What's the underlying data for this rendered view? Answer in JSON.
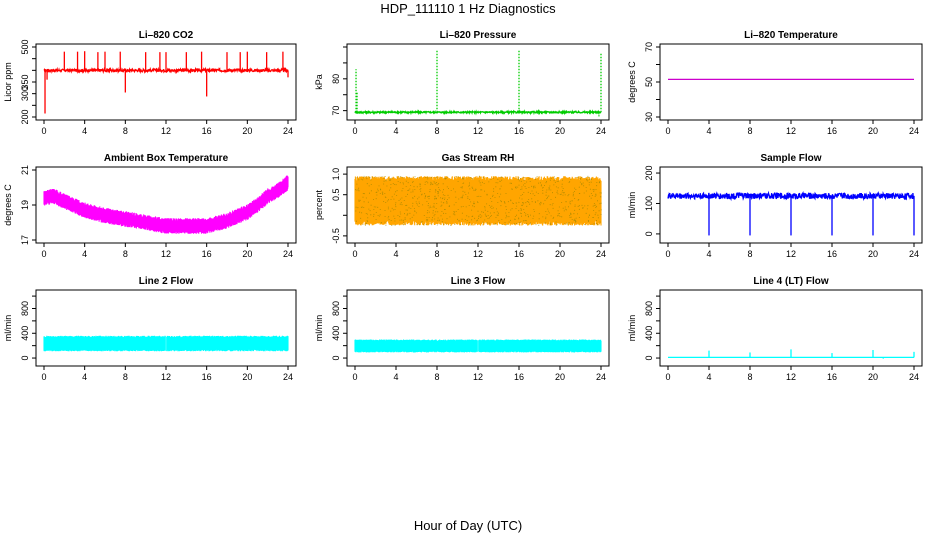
{
  "figure": {
    "title": "HDP_111110  1 Hz Diagnostics",
    "xlabel": "Hour of Day (UTC)"
  },
  "chart_data": [
    {
      "type": "line",
      "title": "Li–820 CO2",
      "ylabel": "Licor ppm",
      "color": "#ff0000",
      "xlim": [
        0,
        24
      ],
      "ylim": [
        200,
        500
      ],
      "xticks": [
        0,
        4,
        8,
        12,
        16,
        20,
        24
      ],
      "yticks": [
        200,
        250,
        300,
        350,
        400,
        450,
        500
      ],
      "ytick_labels": [
        "200",
        "",
        "300",
        "350",
        "",
        "",
        "500"
      ],
      "baseline": 400,
      "noise": 6,
      "events": [
        [
          0.1,
          215
        ],
        [
          0.3,
          360
        ],
        [
          2,
          480
        ],
        [
          3.3,
          480
        ],
        [
          4,
          482
        ],
        [
          5.3,
          478
        ],
        [
          6,
          480
        ],
        [
          7.5,
          480
        ],
        [
          8,
          305
        ],
        [
          10,
          478
        ],
        [
          11.4,
          478
        ],
        [
          12,
          478
        ],
        [
          14,
          478
        ],
        [
          15.5,
          480
        ],
        [
          16,
          288
        ],
        [
          18,
          478
        ],
        [
          19.3,
          478
        ],
        [
          20,
          480
        ],
        [
          21.9,
          478
        ],
        [
          23.5,
          480
        ],
        [
          24,
          370
        ]
      ]
    },
    {
      "type": "line",
      "title": "Li–820 Pressure",
      "ylabel": "kPa",
      "color": "#00cc00",
      "xlim": [
        0,
        24
      ],
      "ylim": [
        68,
        90
      ],
      "xticks": [
        0,
        4,
        8,
        12,
        16,
        20,
        24
      ],
      "yticks": [
        70,
        75,
        80,
        85,
        90
      ],
      "ytick_labels": [
        "70",
        "",
        "80",
        "",
        ""
      ],
      "baseline": 69.5,
      "noise": 0.25,
      "events": [
        [
          0.1,
          83
        ],
        [
          0.2,
          76
        ],
        [
          8,
          89
        ],
        [
          16,
          89
        ],
        [
          24,
          88
        ],
        [
          23.8,
          68.2
        ]
      ]
    },
    {
      "type": "line",
      "title": "Li–820 Temperature",
      "ylabel": "degrees C",
      "color": "#cc00cc",
      "xlim": [
        0,
        24
      ],
      "ylim": [
        30,
        70
      ],
      "xticks": [
        0,
        4,
        8,
        12,
        16,
        20,
        24
      ],
      "yticks": [
        30,
        40,
        50,
        60,
        70
      ],
      "ytick_labels": [
        "30",
        "",
        "50",
        "",
        "70"
      ],
      "baseline": 51.5,
      "noise": 0,
      "events": []
    },
    {
      "type": "line",
      "title": "Ambient Box Temperature",
      "ylabel": "degrees C",
      "color": "#ff00ff",
      "xlim": [
        0,
        24
      ],
      "ylim": [
        17,
        21
      ],
      "xticks": [
        0,
        4,
        8,
        12,
        16,
        20,
        24
      ],
      "yticks": [
        17,
        19,
        21
      ],
      "ytick_labels": [
        "17",
        "19",
        "21"
      ],
      "curve_x": [
        0,
        1,
        2,
        4,
        6,
        8,
        10,
        12,
        14,
        16,
        18,
        20,
        21,
        22,
        23,
        24
      ],
      "curve_y": [
        19.4,
        19.5,
        19.2,
        18.7,
        18.4,
        18.2,
        18.0,
        17.8,
        17.8,
        17.8,
        18.1,
        18.6,
        19.0,
        19.5,
        19.8,
        20.3
      ],
      "noise": 0.45,
      "events": []
    },
    {
      "type": "line",
      "title": "Gas Stream RH",
      "ylabel": "percent",
      "color": "#ffa500",
      "xlim": [
        0,
        24
      ],
      "ylim": [
        -0.6,
        1.1
      ],
      "xticks": [
        0,
        4,
        8,
        12,
        16,
        20,
        24
      ],
      "yticks": [
        -0.5,
        0,
        0.5,
        1.0
      ],
      "ytick_labels": [
        "-0.5",
        "",
        "0.5",
        "1.0"
      ],
      "band": [
        -0.25,
        0.95
      ],
      "dot_color": "#7a7a00",
      "events": []
    },
    {
      "type": "line",
      "title": "Sample Flow",
      "ylabel": "ml/min",
      "color": "#0000ff",
      "xlim": [
        0,
        24
      ],
      "ylim": [
        -20,
        210
      ],
      "xticks": [
        0,
        4,
        8,
        12,
        16,
        20,
        24
      ],
      "yticks": [
        0,
        100,
        200
      ],
      "ytick_labels": [
        "0",
        "100",
        "200"
      ],
      "baseline": 125,
      "noise": 10,
      "events": [
        [
          4,
          -5
        ],
        [
          8,
          -5
        ],
        [
          12,
          -5
        ],
        [
          16,
          -5
        ],
        [
          20,
          -5
        ],
        [
          24,
          -5
        ]
      ]
    },
    {
      "type": "line",
      "title": "Line 2 Flow",
      "ylabel": "ml/min",
      "color": "#00ffff",
      "xlim": [
        0,
        24
      ],
      "ylim": [
        -80,
        1050
      ],
      "xticks": [
        0,
        4,
        8,
        12,
        16,
        20,
        24
      ],
      "yticks": [
        0,
        200,
        400,
        600,
        800,
        1000
      ],
      "ytick_labels": [
        "0",
        "",
        "400",
        "",
        "800",
        ""
      ],
      "band": [
        110,
        360
      ],
      "gaps": [
        4,
        8,
        12,
        16,
        20
      ],
      "events": []
    },
    {
      "type": "line",
      "title": "Line 3 Flow",
      "ylabel": "ml/min",
      "color": "#00ffff",
      "xlim": [
        0,
        24
      ],
      "ylim": [
        -80,
        1050
      ],
      "xticks": [
        0,
        4,
        8,
        12,
        16,
        20,
        24
      ],
      "yticks": [
        0,
        200,
        400,
        600,
        800,
        1000
      ],
      "ytick_labels": [
        "0",
        "",
        "400",
        "",
        "800",
        ""
      ],
      "band": [
        90,
        300
      ],
      "gaps": [
        4,
        8,
        12,
        16,
        20
      ],
      "events": []
    },
    {
      "type": "line",
      "title": "Line 4 (LT) Flow",
      "ylabel": "ml/min",
      "color": "#00ffff",
      "xlim": [
        0,
        24
      ],
      "ylim": [
        -80,
        1050
      ],
      "xticks": [
        0,
        4,
        8,
        12,
        16,
        20,
        24
      ],
      "yticks": [
        0,
        200,
        400,
        600,
        800,
        1000
      ],
      "ytick_labels": [
        "0",
        "",
        "400",
        "",
        "800",
        ""
      ],
      "baseline": 10,
      "noise": 0,
      "events": [
        [
          4,
          120
        ],
        [
          8,
          90
        ],
        [
          12,
          140
        ],
        [
          16,
          80
        ],
        [
          20,
          130
        ],
        [
          21,
          -10
        ],
        [
          24,
          100
        ]
      ]
    }
  ]
}
